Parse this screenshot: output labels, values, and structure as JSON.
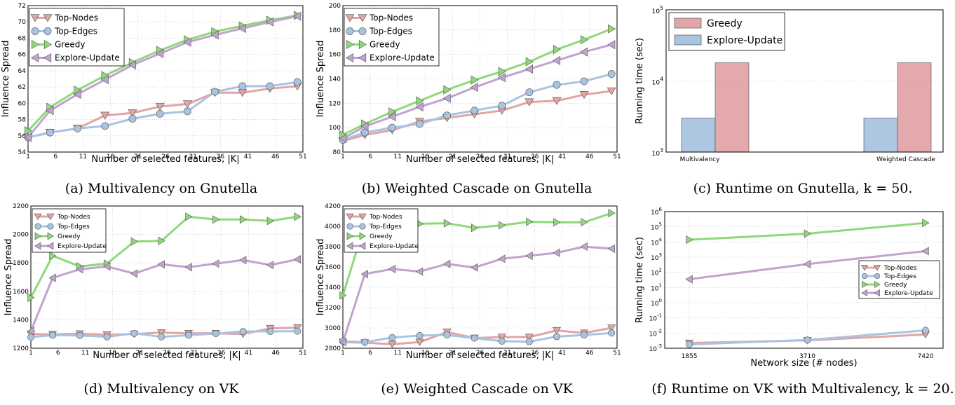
{
  "colors": {
    "top_nodes": "#e0a5a5",
    "top_edges": "#a9c4e0",
    "greedy": "#8fd87a",
    "explore_update": "#c0a3cf",
    "bar_greedy": "#e2a5a8",
    "bar_explore": "#a9c3e0"
  },
  "captions": [
    "(a) Multivalency on Gnutella",
    "(b) Weighted Cascade on Gnutella",
    "(c) Runtime on Gnutella, k = 50.",
    "(d) Multivalency on VK",
    "(e) Weighted Cascade on VK",
    "(f) Runtime on VK with Multivalency, k = 20."
  ],
  "chart_data": [
    {
      "type": "line",
      "caption": "(a) Multivalency on Gnutella",
      "xlabel": "Number of selected features, |K|",
      "ylabel": "Influence Spread",
      "x": [
        1,
        5,
        10,
        15,
        20,
        25,
        30,
        35,
        40,
        45,
        50
      ],
      "xticks": [
        "1",
        "6",
        "11",
        "16",
        "21",
        "26",
        "31",
        "36",
        "41",
        "46",
        "51"
      ],
      "xlim": [
        1,
        51
      ],
      "ylim": [
        54,
        72
      ],
      "yticks": [
        "54",
        "56",
        "58",
        "60",
        "62",
        "64",
        "66",
        "68",
        "70",
        "72"
      ],
      "legend_position": "top-left",
      "grid": true,
      "series": [
        {
          "name": "Top-Nodes",
          "values": [
            55.8,
            56.4,
            56.9,
            58.5,
            58.8,
            59.6,
            59.9,
            61.3,
            61.3,
            61.8,
            62.1
          ]
        },
        {
          "name": "Top-Edges",
          "values": [
            55.8,
            56.4,
            56.9,
            57.2,
            58.1,
            58.7,
            59.0,
            61.4,
            62.1,
            62.1,
            62.6
          ]
        },
        {
          "name": "Greedy",
          "values": [
            56.6,
            59.5,
            61.6,
            63.4,
            65.0,
            66.5,
            67.8,
            68.8,
            69.5,
            70.2,
            70.8
          ]
        },
        {
          "name": "Explore-Update",
          "values": [
            55.8,
            59.1,
            61.1,
            62.9,
            64.7,
            66.1,
            67.5,
            68.4,
            69.2,
            70.0,
            70.7
          ]
        }
      ]
    },
    {
      "type": "line",
      "caption": "(b) Weighted Cascade on Gnutella",
      "xlabel": "Number of selected features, |K|",
      "ylabel": "Influence Spread",
      "x": [
        1,
        5,
        10,
        15,
        20,
        25,
        30,
        35,
        40,
        45,
        50
      ],
      "xticks": [
        "1",
        "6",
        "11",
        "16",
        "21",
        "26",
        "31",
        "36",
        "41",
        "46",
        "51"
      ],
      "xlim": [
        1,
        51
      ],
      "ylim": [
        80,
        200
      ],
      "yticks": [
        "80",
        "100",
        "120",
        "140",
        "160",
        "180",
        "200"
      ],
      "legend_position": "top-left",
      "grid": true,
      "series": [
        {
          "name": "Top-Nodes",
          "values": [
            89,
            94,
            98,
            105,
            108,
            111,
            114,
            121,
            122,
            127,
            130
          ]
        },
        {
          "name": "Top-Edges",
          "values": [
            90,
            96,
            100,
            103,
            110,
            114,
            118,
            129,
            135,
            138,
            144
          ]
        },
        {
          "name": "Greedy",
          "values": [
            94,
            103,
            113,
            122,
            131,
            139,
            146,
            154,
            164,
            172,
            181
          ]
        },
        {
          "name": "Explore-Update",
          "values": [
            91,
            101,
            109,
            117,
            124,
            133,
            141,
            148,
            155,
            162,
            168
          ]
        }
      ]
    },
    {
      "type": "bar",
      "caption": "(c) Runtime on Gnutella, k = 50.",
      "ylabel": "Running time (sec)",
      "categories": [
        "Multivalency",
        "Weighted Cascade"
      ],
      "yscale": "log",
      "ylim": [
        1000,
        100000
      ],
      "yticks": [
        {
          "base": "10",
          "exp": "3"
        },
        {
          "base": "10",
          "exp": "4"
        },
        {
          "base": "10",
          "exp": "5"
        }
      ],
      "legend_position": "top-left",
      "grid": true,
      "series": [
        {
          "name": "Greedy",
          "values": [
            18000,
            18000
          ]
        },
        {
          "name": "Explore-Update",
          "values": [
            3000,
            3000
          ]
        }
      ]
    },
    {
      "type": "line",
      "caption": "(d) Multivalency on VK",
      "xlabel": "Number of selected features, |K|",
      "ylabel": "Influence Spread",
      "x": [
        1,
        5,
        10,
        15,
        20,
        25,
        30,
        35,
        40,
        45,
        50
      ],
      "xticks": [
        "1",
        "6",
        "11",
        "16",
        "21",
        "26",
        "31",
        "36",
        "41",
        "46",
        "51"
      ],
      "xlim": [
        1,
        51
      ],
      "ylim": [
        1200,
        2200
      ],
      "yticks": [
        "1200",
        "1400",
        "1600",
        "1800",
        "2000",
        "2200"
      ],
      "legend_position": "top-left",
      "grid": true,
      "series": [
        {
          "name": "Top-Nodes",
          "values": [
            1300,
            1298,
            1302,
            1295,
            1300,
            1310,
            1305,
            1305,
            1300,
            1340,
            1345
          ]
        },
        {
          "name": "Top-Edges",
          "values": [
            1278,
            1292,
            1290,
            1280,
            1305,
            1280,
            1292,
            1303,
            1318,
            1318,
            1320
          ]
        },
        {
          "name": "Greedy",
          "values": [
            1555,
            1850,
            1775,
            1795,
            1950,
            1955,
            2125,
            2105,
            2105,
            2095,
            2125
          ]
        },
        {
          "name": "Explore-Update",
          "values": [
            1320,
            1695,
            1755,
            1775,
            1725,
            1790,
            1770,
            1795,
            1820,
            1785,
            1825
          ]
        }
      ]
    },
    {
      "type": "line",
      "caption": "(e) Weighted Cascade on VK",
      "xlabel": "Number of selected features, |K|",
      "ylabel": "Influence Spread",
      "x": [
        1,
        5,
        10,
        15,
        20,
        25,
        30,
        35,
        40,
        45,
        50
      ],
      "xticks": [
        "1",
        "6",
        "11",
        "16",
        "21",
        "26",
        "31",
        "36",
        "41",
        "46",
        "51"
      ],
      "xlim": [
        1,
        51
      ],
      "ylim": [
        2800,
        4200
      ],
      "yticks": [
        "2800",
        "3000",
        "3200",
        "3400",
        "3600",
        "3800",
        "4000",
        "4200"
      ],
      "legend_position": "top-left",
      "grid": true,
      "series": [
        {
          "name": "Top-Nodes",
          "values": [
            2860,
            2855,
            2840,
            2860,
            2960,
            2900,
            2910,
            2910,
            2975,
            2950,
            3000
          ]
        },
        {
          "name": "Top-Edges",
          "values": [
            2870,
            2860,
            2905,
            2925,
            2930,
            2900,
            2870,
            2865,
            2915,
            2930,
            2950
          ]
        },
        {
          "name": "Greedy",
          "values": [
            3320,
            4020,
            4020,
            4025,
            4030,
            3985,
            4010,
            4045,
            4040,
            4040,
            4130
          ]
        },
        {
          "name": "Explore-Update",
          "values": [
            2860,
            3530,
            3580,
            3555,
            3630,
            3595,
            3680,
            3710,
            3740,
            3800,
            3780
          ]
        }
      ]
    },
    {
      "type": "line",
      "caption": "(f) Runtime on VK with Multivalency, k = 20.",
      "xlabel": "Network size (# nodes)",
      "ylabel": "Running time (sec)",
      "x": [
        1855,
        3710,
        7420
      ],
      "xticks": [
        "1855",
        "3710",
        "7420"
      ],
      "yscale": "log",
      "ylim": [
        0.001,
        1000000
      ],
      "yticks": [
        {
          "base": "10",
          "exp": "-3"
        },
        {
          "base": "10",
          "exp": "-2"
        },
        {
          "base": "10",
          "exp": "-1"
        },
        {
          "base": "10",
          "exp": "0"
        },
        {
          "base": "10",
          "exp": "1"
        },
        {
          "base": "10",
          "exp": "2"
        },
        {
          "base": "10",
          "exp": "3"
        },
        {
          "base": "10",
          "exp": "4"
        },
        {
          "base": "10",
          "exp": "5"
        },
        {
          "base": "10",
          "exp": "6"
        }
      ],
      "legend_position": "right",
      "grid": true,
      "series": [
        {
          "name": "Top-Nodes",
          "values": [
            0.0022,
            0.0033,
            0.008
          ]
        },
        {
          "name": "Top-Edges",
          "values": [
            0.0018,
            0.0035,
            0.015
          ]
        },
        {
          "name": "Greedy",
          "values": [
            14000,
            35000,
            180000
          ]
        },
        {
          "name": "Explore-Update",
          "values": [
            35,
            350,
            2500
          ]
        }
      ]
    }
  ]
}
